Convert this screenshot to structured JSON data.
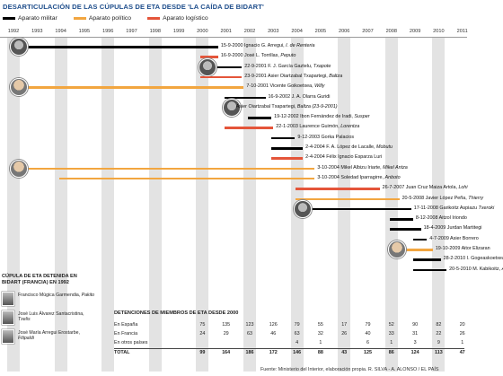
{
  "title": "DESARTICULACIÓN DE LAS CÚPULAS DE ETA DESDE 'LA CAÍDA DE BIDART'",
  "legend": [
    {
      "label": "Aparato militar",
      "color": "#000000"
    },
    {
      "label": "Aparato político",
      "color": "#f2a640"
    },
    {
      "label": "Aparato logístico",
      "color": "#e4553a"
    }
  ],
  "years": [
    "1992",
    "1993",
    "1994",
    "1995",
    "1996",
    "1997",
    "1998",
    "1999",
    "2000",
    "2001",
    "2002",
    "2003",
    "2004",
    "2005",
    "2006",
    "2007",
    "2008",
    "2009",
    "2010",
    "2011"
  ],
  "events": [
    {
      "date": "15-9-2000",
      "name": "Ignacio G. Arregui,",
      "alias": "I. de Renteria",
      "type": "militar",
      "start": "1992",
      "photo": true
    },
    {
      "date": "16-9-2000",
      "name": "José L. Torrillas,",
      "alias": "Peputo",
      "type": "logistico",
      "start": "2000"
    },
    {
      "date": "22-9-2001",
      "name": "F. J. García Gaztelu,",
      "alias": "Txapote",
      "type": "militar",
      "start": "2000",
      "photo": true
    },
    {
      "date": "23-9-2001",
      "name": "Asier Oiartzabal Txapartegi,",
      "alias": "Baltza",
      "type": "logistico",
      "start": "2000"
    },
    {
      "date": "7-10-2001",
      "name": "Vicente Goikoetxea,",
      "alias": "Willy",
      "type": "politico",
      "start": "1992",
      "photo": true
    },
    {
      "date": "16-9-2002",
      "name": "J. A. Olarra Guridi",
      "alias": "",
      "type": "militar",
      "start": "2001"
    },
    {
      "date": "",
      "name": "Asier Oiartzabal Txapartegi,",
      "alias": "Baltza (23-9-2001)",
      "type": "militar",
      "start": "2001",
      "photo": true
    },
    {
      "date": "19-12-2002",
      "name": "Ibon Fernández de Iradi,",
      "alias": "Susper",
      "type": "militar",
      "start": "2002"
    },
    {
      "date": "22-1-2003",
      "name": "Laurence Guimón,",
      "alias": "Lorentza",
      "type": "logistico",
      "start": "2001"
    },
    {
      "date": "9-12-2003",
      "name": "Gorka Palacios",
      "alias": "",
      "type": "militar",
      "start": "2003"
    },
    {
      "date": "2-4-2004",
      "name": "F. A. López de Lacalle,",
      "alias": "Mobutu",
      "type": "militar",
      "start": "2003"
    },
    {
      "date": "2-4-2004",
      "name": "Félix Ignacio Esparza Luri",
      "alias": "",
      "type": "logistico",
      "start": "2003"
    },
    {
      "date": "3-10-2004",
      "name": "Mikel Albizu Iriarte,",
      "alias": "Mikel Antza",
      "type": "politico",
      "start": "1992",
      "photo": true
    },
    {
      "date": "3-10-2004",
      "name": "Soledad Iparragirre,",
      "alias": "Anboto",
      "type": "politico",
      "start": "1994"
    },
    {
      "date": "26-7-2007",
      "name": "Juan Cruz Maiza Artola,",
      "alias": "Lohi",
      "type": "logistico",
      "start": "2004"
    },
    {
      "date": "20-5-2008",
      "name": "Javier López Peña,",
      "alias": "Thierry",
      "type": "politico",
      "start": "2004"
    },
    {
      "date": "17-11-2008",
      "name": "Garikoitz Aspiazu",
      "alias": "Txeroki",
      "type": "militar",
      "start": "2004",
      "photo": true
    },
    {
      "date": "8-12-2008",
      "name": "Aitzol Iriondo",
      "alias": "",
      "type": "militar",
      "start": "2008"
    },
    {
      "date": "18-4-2009",
      "name": "Jurdan Martitegi",
      "alias": "",
      "type": "militar",
      "start": "2008"
    },
    {
      "date": "4-7-2009",
      "name": "Asier Borrero",
      "alias": "",
      "type": "militar",
      "start": "2009"
    },
    {
      "date": "19-10-2009",
      "name": "Aitor Elizaran",
      "alias": "",
      "type": "politico",
      "start": "2008",
      "photo": true
    },
    {
      "date": "28-2-2010",
      "name": "I. Gogeaskoetxea",
      "alias": "",
      "type": "militar",
      "start": "2009"
    },
    {
      "date": "20-5-2010",
      "name": "M. Kabikoitz,",
      "alias": "Ata",
      "type": "militar",
      "start": "2009"
    }
  ],
  "cupula": {
    "title": "CÚPULA DE ETA DETENIDA EN BIDART (FRANCIA) EN 1992",
    "members": [
      {
        "name": "Francisco Múgica Garmendia,",
        "alias": "Pakito"
      },
      {
        "name": "José Luis Álvarez Santacristina,",
        "alias": "Txelis"
      },
      {
        "name": "José María Arregui Erostarbe,",
        "alias": "Fitipaldi"
      }
    ]
  },
  "table": {
    "title": "DETENCIONES DE MIEMBROS DE ETA DESDE 2000",
    "rows": [
      {
        "label": "En España",
        "values": [
          "75",
          "135",
          "123",
          "126",
          "79",
          "55",
          "17",
          "79",
          "52",
          "90",
          "82",
          "20"
        ]
      },
      {
        "label": "En Francia",
        "values": [
          "24",
          "29",
          "63",
          "46",
          "63",
          "32",
          "26",
          "40",
          "33",
          "31",
          "22",
          "26"
        ]
      },
      {
        "label": "En otros países",
        "values": [
          "",
          "",
          "",
          "",
          "4",
          "1",
          "",
          "6",
          "1",
          "3",
          "9",
          "1"
        ]
      },
      {
        "label": "TOTAL",
        "values": [
          "99",
          "164",
          "186",
          "172",
          "146",
          "88",
          "43",
          "125",
          "86",
          "124",
          "113",
          "47"
        ]
      }
    ]
  },
  "source": "Fuente: Ministerio del Interior, elaboración propia.     R. SILVA - A. ALONSO / EL PAÍS",
  "colors": {
    "militar": "#000000",
    "politico": "#f2a640",
    "logistico": "#e4553a"
  }
}
